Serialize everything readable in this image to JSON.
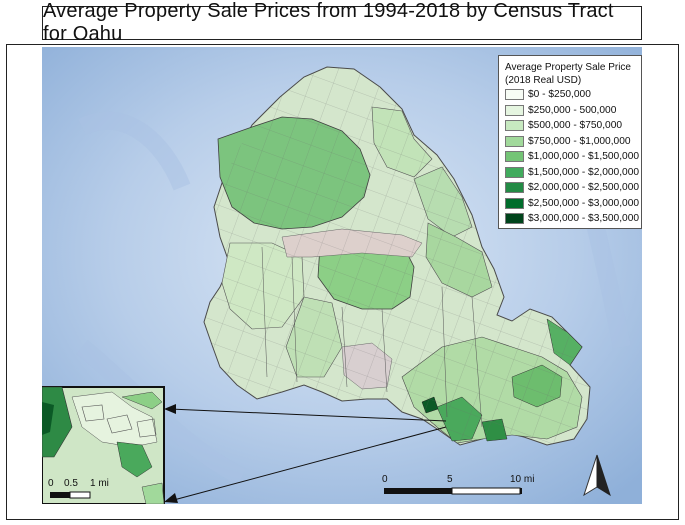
{
  "title": "Average Property Sale Prices from 1994-2018 by Census Tract for Oahu",
  "legend": {
    "title_line1": "Average Property Sale Price",
    "title_line2": "(2018 Real USD)",
    "items": [
      {
        "label": "$0 - $250,000",
        "color": "#f7fcf5"
      },
      {
        "label": "$250,000 - 500,000",
        "color": "#e5f5e0"
      },
      {
        "label": "$500,000 - $750,000",
        "color": "#c7e9c0"
      },
      {
        "label": "$750,000 - $1,000,000",
        "color": "#a1d99b"
      },
      {
        "label": "$1,000,000 - $1,500,000",
        "color": "#74c476"
      },
      {
        "label": "$1,500,000 - $2,000,000",
        "color": "#41ab5d"
      },
      {
        "label": "$2,000,000 - $2,500,000",
        "color": "#238b45"
      },
      {
        "label": "$2,500,000 - $3,000,000",
        "color": "#006d2c"
      },
      {
        "label": "$3,000,000 - $3,500,000",
        "color": "#00441b"
      }
    ]
  },
  "main_scale": {
    "ticks": [
      "0",
      "5",
      "10 mi"
    ]
  },
  "inset_scale": {
    "ticks": [
      "0",
      "0.5",
      "1 mi"
    ]
  },
  "colors": {
    "ocean_light": "#c9daf0",
    "ocean_deep": "#8aa9d4",
    "land_base": "#dfe8d8",
    "tract_stroke": "#555555"
  }
}
